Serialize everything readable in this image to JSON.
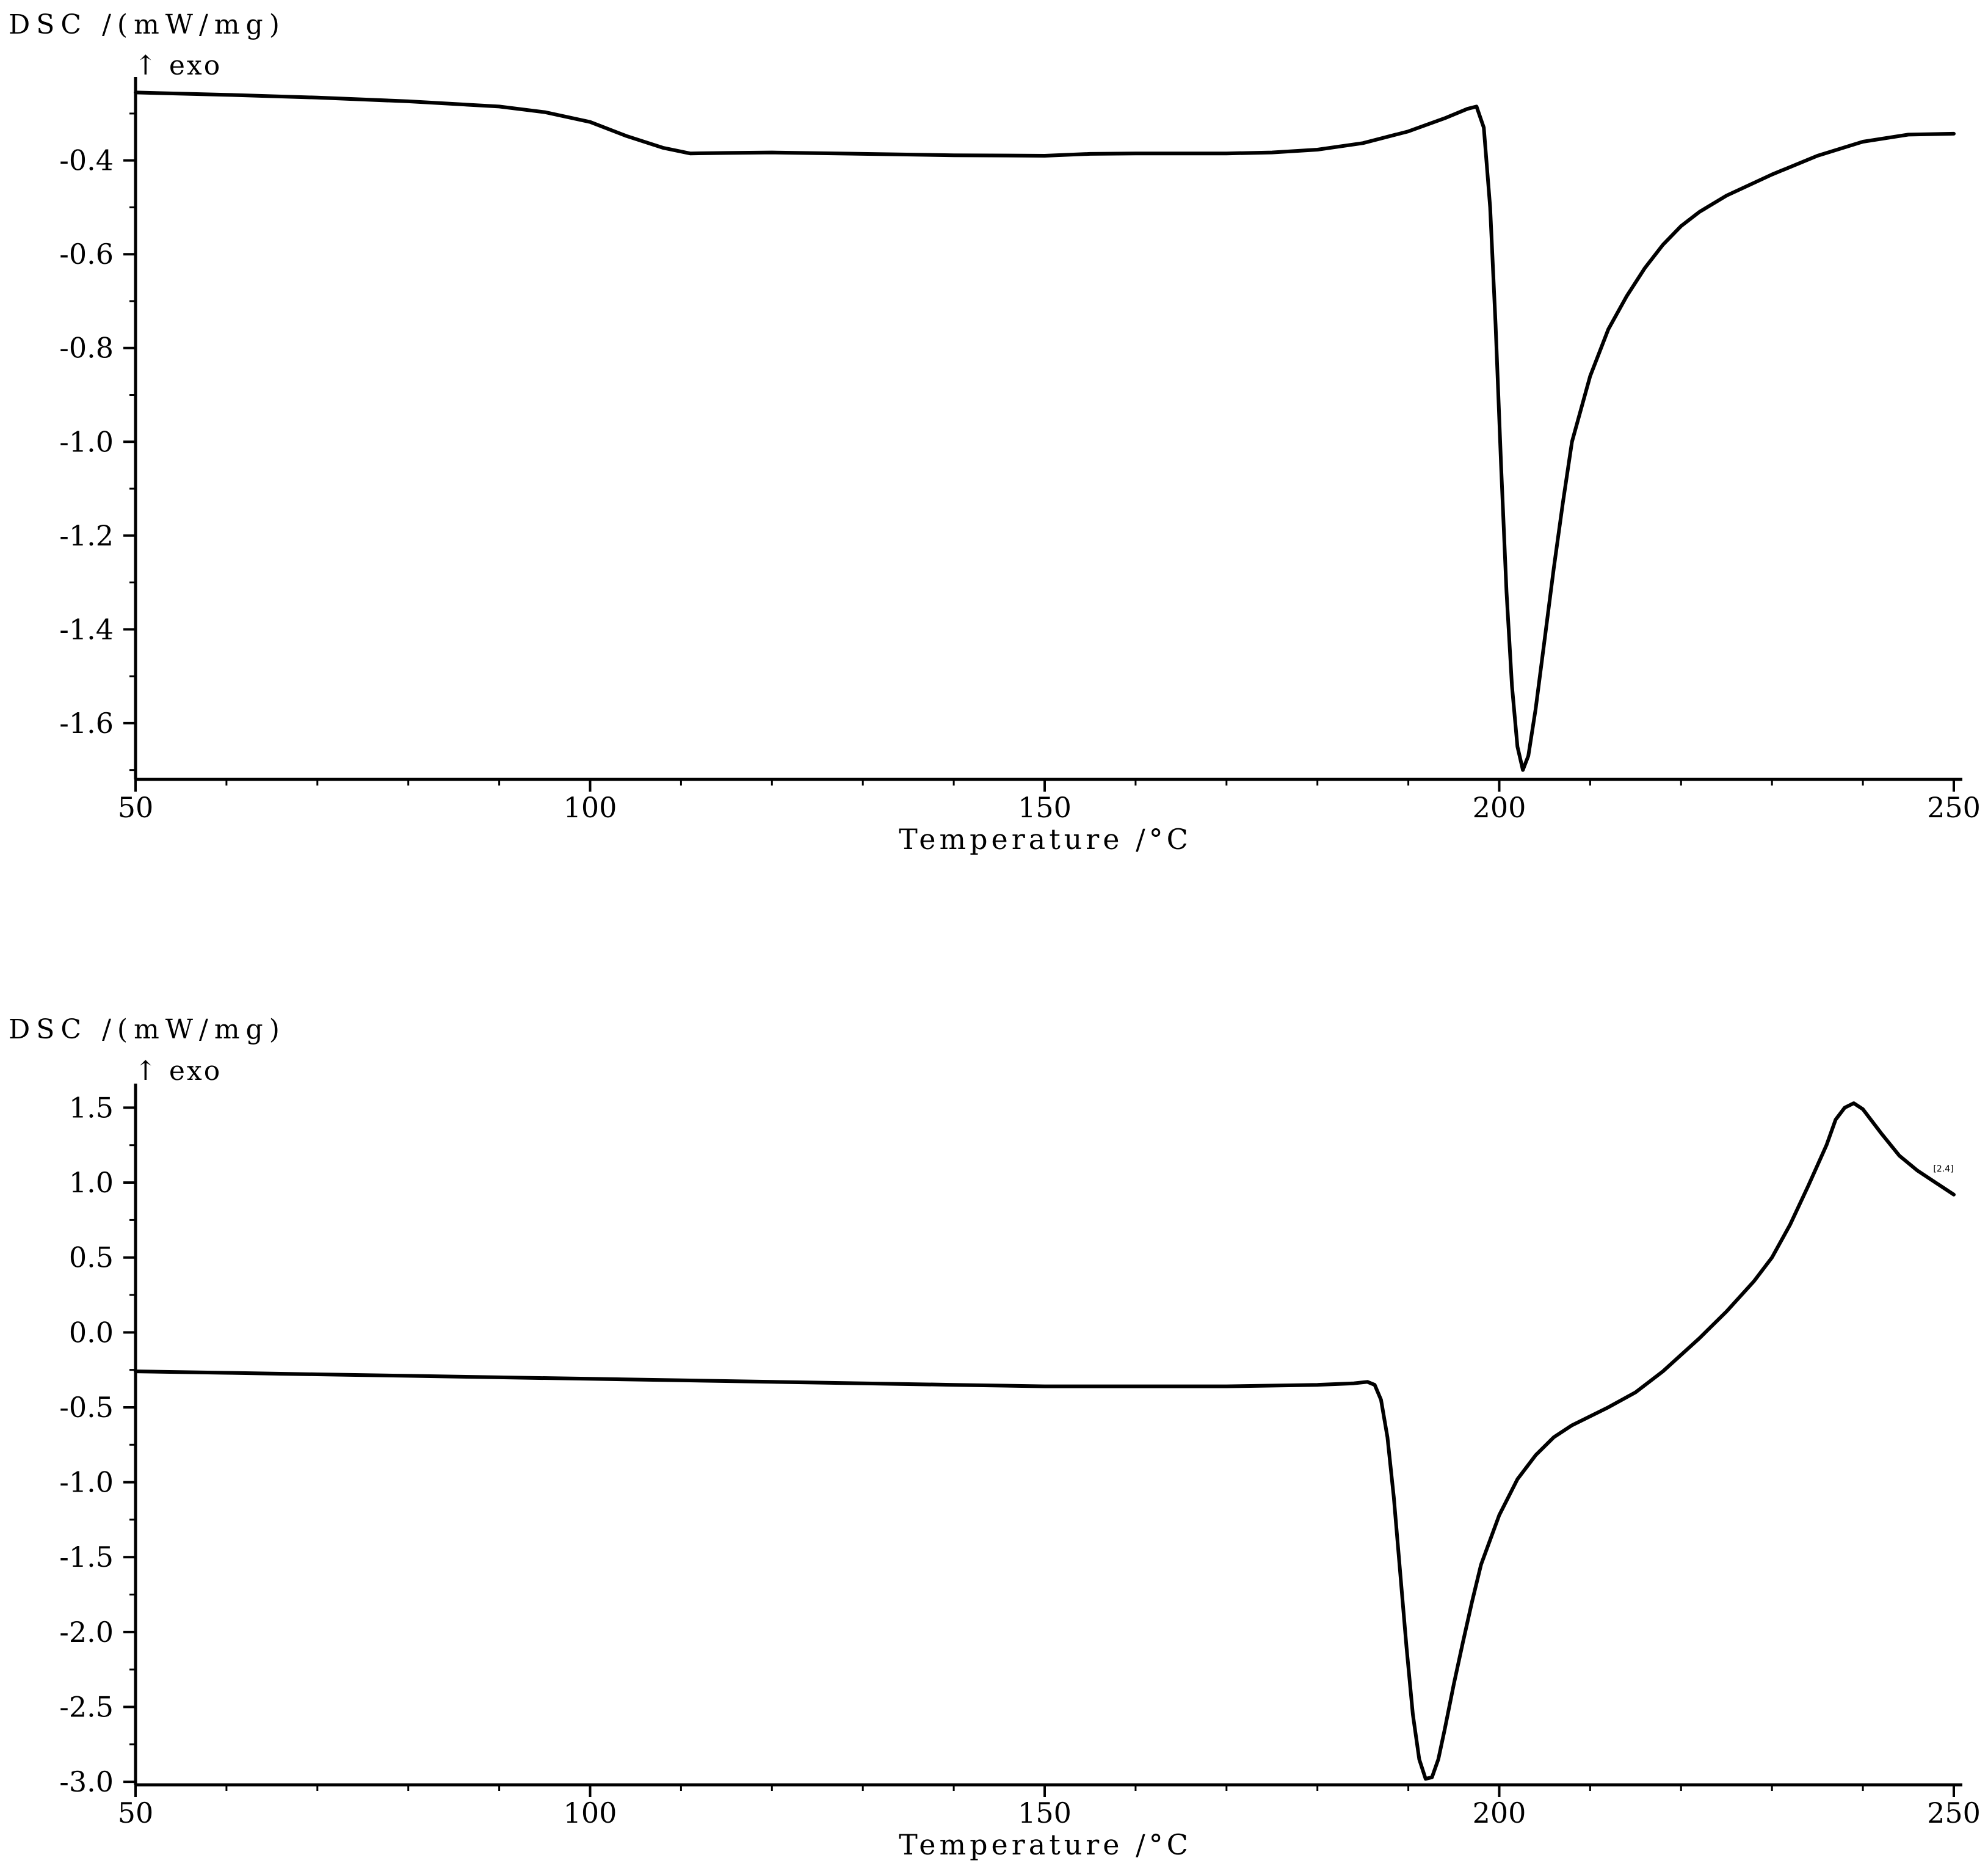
{
  "chart_data": [
    {
      "type": "line",
      "ylabel": "DSC /(mW/mg)",
      "ylabel_sub": "↑ exo",
      "xlabel": "Temperature /°C",
      "xlim": [
        50,
        250
      ],
      "ylim": [
        -1.72,
        -0.235
      ],
      "xticks": [
        50,
        100,
        150,
        200,
        250
      ],
      "xtick_labels": [
        "50",
        "100",
        "150",
        "200",
        "250"
      ],
      "yticks": [
        -0.4,
        -0.6,
        -0.8,
        -1.0,
        -1.2,
        -1.4,
        -1.6
      ],
      "ytick_labels": [
        "-0.4",
        "-0.6",
        "-0.8",
        "-1.0",
        "-1.2",
        "-1.4",
        "-1.6"
      ],
      "x_minor_step": 10,
      "y_minor_step": 0.1,
      "grid": false,
      "series": [
        {
          "x": [
            50,
            60,
            70,
            80,
            90,
            95,
            100,
            104,
            108,
            111,
            115,
            120,
            130,
            140,
            150,
            155,
            160,
            170,
            175,
            180,
            185,
            190,
            194,
            196.5,
            197.5,
            198.3,
            199,
            199.6,
            200.2,
            200.8,
            201.4,
            202,
            202.6,
            203.2,
            204,
            205,
            206,
            207,
            208,
            210,
            212,
            214,
            216,
            218,
            220,
            222,
            225,
            230,
            235,
            240,
            245,
            250
          ],
          "y": [
            -0.255,
            -0.26,
            -0.266,
            -0.274,
            -0.285,
            -0.297,
            -0.318,
            -0.348,
            -0.373,
            -0.385,
            -0.384,
            -0.383,
            -0.386,
            -0.389,
            -0.39,
            -0.386,
            -0.385,
            -0.385,
            -0.383,
            -0.377,
            -0.363,
            -0.338,
            -0.31,
            -0.29,
            -0.285,
            -0.33,
            -0.5,
            -0.75,
            -1.05,
            -1.32,
            -1.52,
            -1.65,
            -1.7,
            -1.67,
            -1.57,
            -1.42,
            -1.27,
            -1.13,
            -1.0,
            -0.86,
            -0.76,
            -0.69,
            -0.63,
            -0.58,
            -0.54,
            -0.51,
            -0.475,
            -0.43,
            -0.39,
            -0.36,
            -0.345,
            -0.343
          ]
        }
      ]
    },
    {
      "type": "line",
      "ylabel": "DSC /(mW/mg)",
      "ylabel_sub": "↑ exo",
      "xlabel": "Temperature /°C",
      "xlim": [
        50,
        250
      ],
      "ylim": [
        -3.02,
        1.62
      ],
      "xticks": [
        50,
        100,
        150,
        200,
        250
      ],
      "xtick_labels": [
        "50",
        "100",
        "150",
        "200",
        "250"
      ],
      "yticks": [
        1.5,
        1.0,
        0.5,
        0.0,
        -0.5,
        -1.0,
        -1.5,
        -2.0,
        -2.5,
        -3.0
      ],
      "ytick_labels": [
        "1.5",
        "1.0",
        "0.5",
        "0.0",
        "-0.5",
        "-1.0",
        "-1.5",
        "-2.0",
        "-2.5",
        "-3.0"
      ],
      "x_minor_step": 10,
      "y_minor_step": 0.25,
      "grid": false,
      "annotation": "[2.4]",
      "series": [
        {
          "x": [
            50,
            60,
            70,
            80,
            90,
            100,
            110,
            120,
            130,
            140,
            150,
            160,
            170,
            180,
            184,
            185.5,
            186.3,
            187,
            187.7,
            188.4,
            189.1,
            189.8,
            190.5,
            191.2,
            191.9,
            192.6,
            193.3,
            194,
            195,
            196,
            197,
            198,
            200,
            202,
            204,
            206,
            208,
            210,
            212,
            215,
            218,
            220,
            222,
            225,
            228,
            230,
            232,
            234,
            236,
            237,
            238,
            239,
            240,
            242,
            244,
            246,
            248,
            250
          ],
          "y": [
            -0.26,
            -0.27,
            -0.28,
            -0.29,
            -0.3,
            -0.31,
            -0.32,
            -0.33,
            -0.34,
            -0.35,
            -0.36,
            -0.36,
            -0.36,
            -0.35,
            -0.34,
            -0.33,
            -0.35,
            -0.45,
            -0.7,
            -1.1,
            -1.6,
            -2.1,
            -2.55,
            -2.85,
            -2.98,
            -2.97,
            -2.85,
            -2.65,
            -2.35,
            -2.07,
            -1.8,
            -1.55,
            -1.22,
            -0.98,
            -0.82,
            -0.7,
            -0.62,
            -0.56,
            -0.5,
            -0.4,
            -0.26,
            -0.15,
            -0.04,
            0.14,
            0.34,
            0.5,
            0.72,
            0.98,
            1.25,
            1.42,
            1.5,
            1.53,
            1.49,
            1.33,
            1.18,
            1.08,
            1.0,
            0.92
          ]
        }
      ]
    }
  ]
}
